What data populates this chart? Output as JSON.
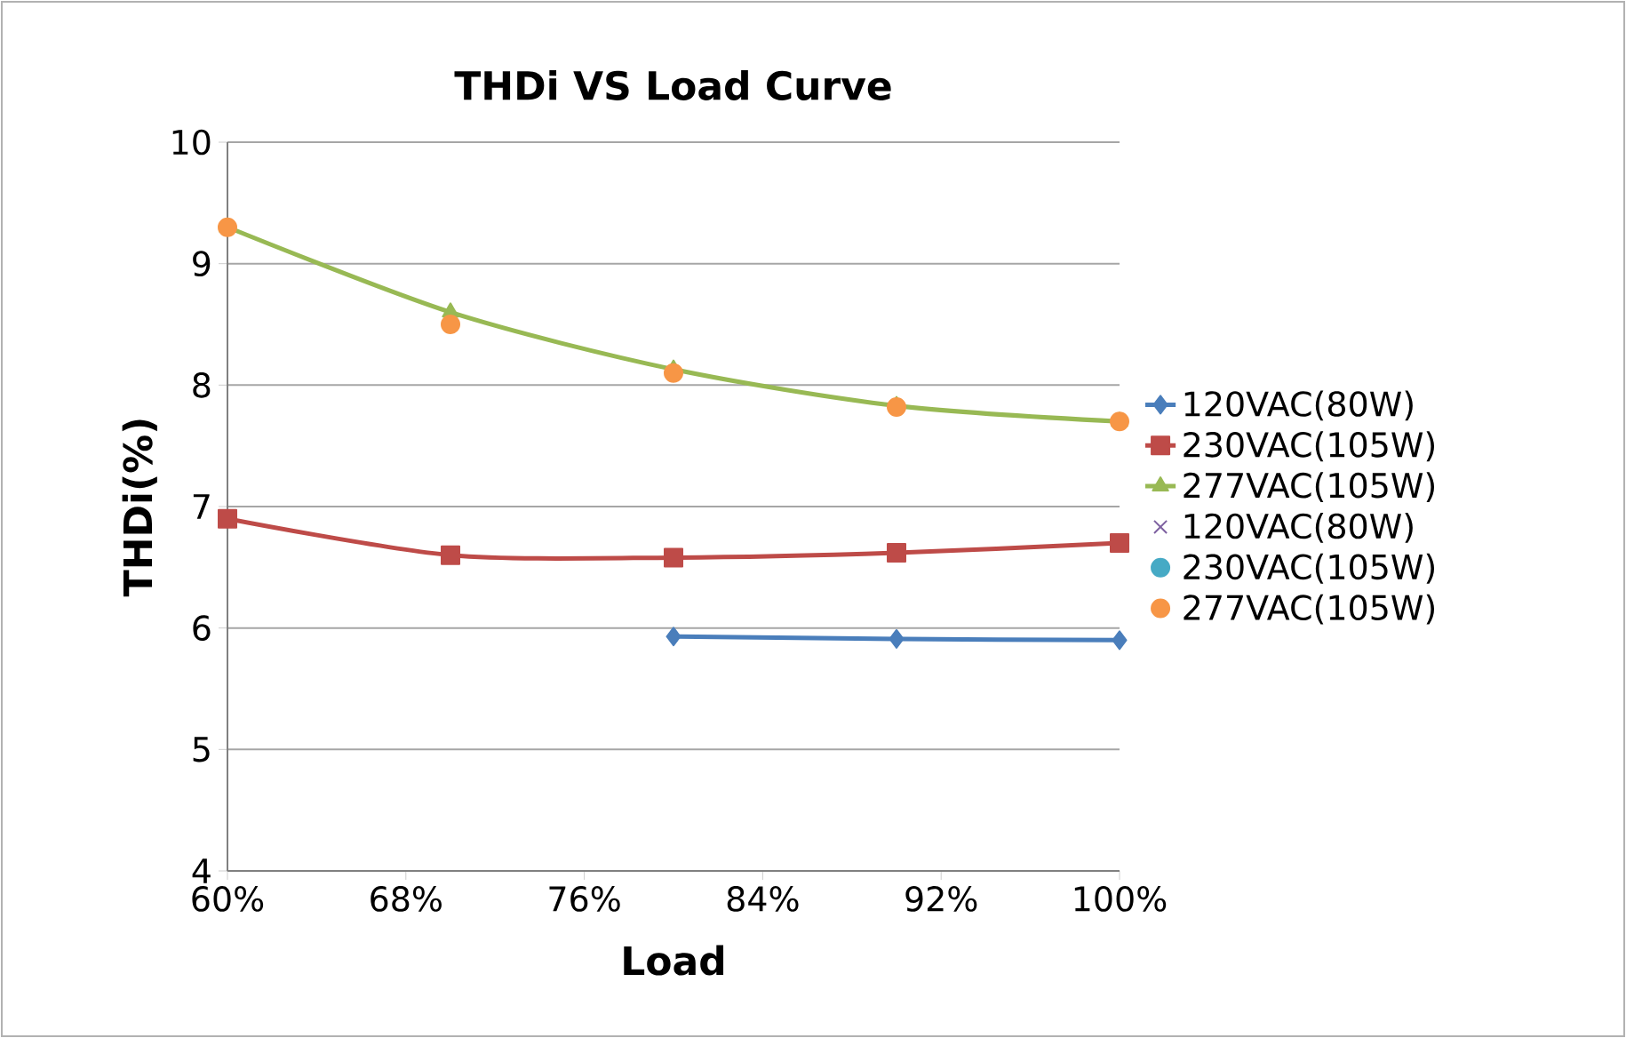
{
  "chart_data": {
    "type": "line",
    "title": "THDi  VS  Load Curve",
    "xlabel": "Load",
    "ylabel": "THDi(%)",
    "x": [
      60,
      70,
      80,
      90,
      100
    ],
    "xlim": [
      60,
      100
    ],
    "xticks": [
      {
        "value": 60,
        "label": "60%"
      },
      {
        "value": 68,
        "label": "68%"
      },
      {
        "value": 76,
        "label": "76%"
      },
      {
        "value": 84,
        "label": "84%"
      },
      {
        "value": 92,
        "label": "92%"
      },
      {
        "value": 100,
        "label": "100%"
      }
    ],
    "ylim": [
      4,
      10
    ],
    "yticks": [
      4,
      5,
      6,
      7,
      8,
      9,
      10
    ],
    "grid": "y",
    "legend": "right",
    "series": [
      {
        "name": "120VAC(80W)",
        "marker": "diamond",
        "color": "#4a7ebb",
        "values": [
          null,
          null,
          5.93,
          5.91,
          5.9
        ]
      },
      {
        "name": "230VAC(105W)",
        "marker": "square",
        "color": "#be4b48",
        "values": [
          6.9,
          6.6,
          6.58,
          6.62,
          6.7
        ]
      },
      {
        "name": "277VAC(105W)",
        "marker": "triangle",
        "color": "#98b954",
        "values": [
          9.3,
          8.6,
          8.13,
          7.83,
          7.7
        ]
      },
      {
        "name": "120VAC(80W)",
        "type": "scatter",
        "marker": "cross",
        "color": "#7d60a0",
        "values": [
          null,
          null,
          null,
          null,
          null
        ]
      },
      {
        "name": "230VAC(105W)",
        "type": "scatter",
        "marker": "circle",
        "color": "#46aac5",
        "values": [
          null,
          null,
          null,
          null,
          null
        ]
      },
      {
        "name": "277VAC(105W)",
        "type": "scatter",
        "marker": "circle",
        "color": "#f79646",
        "values": [
          9.3,
          8.5,
          8.1,
          7.82,
          7.7
        ]
      }
    ]
  }
}
